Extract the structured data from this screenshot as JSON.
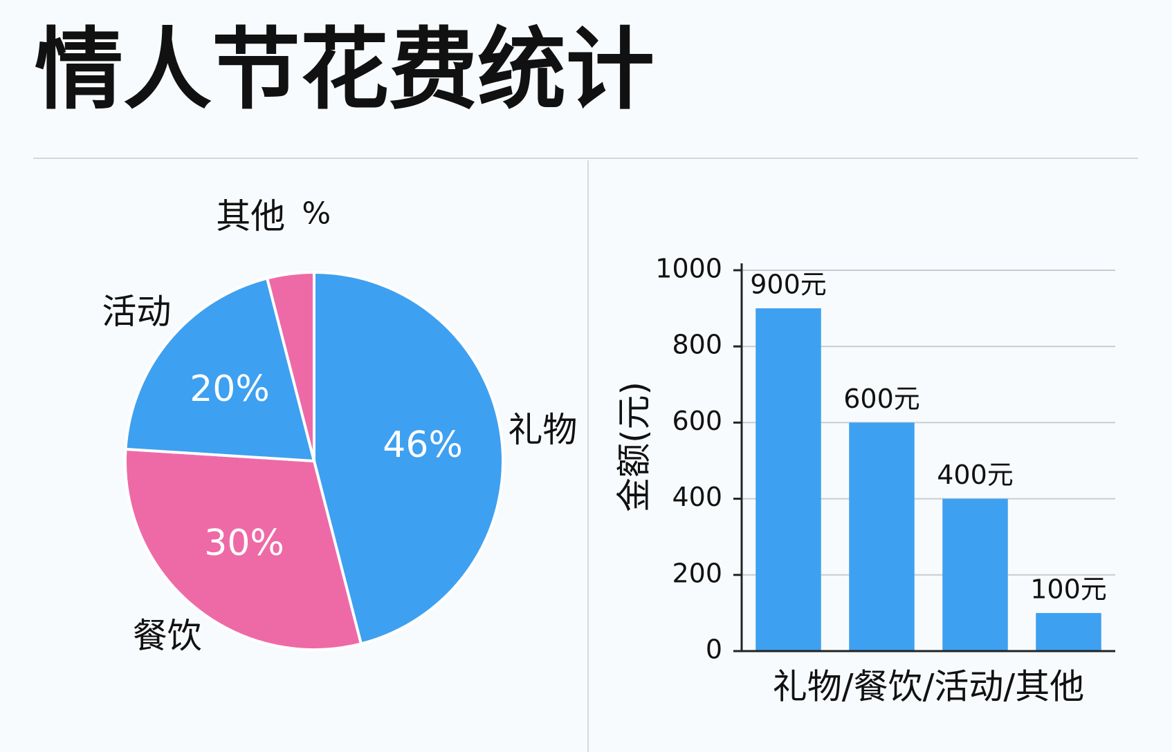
{
  "title": "情人节花费统计",
  "chart_data": [
    {
      "type": "pie",
      "categories": [
        "礼物",
        "餐饮",
        "活动",
        "其他"
      ],
      "values": [
        46,
        30,
        20,
        4
      ],
      "value_labels": [
        "46%",
        "30%",
        "20%",
        "%"
      ],
      "colors": [
        "#3ea0f0",
        "#ee6aa6",
        "#3ea0f0",
        "#ee6aa6"
      ]
    },
    {
      "type": "bar",
      "values": [
        900,
        600,
        400,
        100
      ],
      "value_labels": [
        "900元",
        "600元",
        "400元",
        "100元"
      ],
      "color": "#3ea0f0",
      "xlabel": "礼物/餐饮/活动/其他",
      "ylabel": "金额(元)",
      "ylim": [
        0,
        1000
      ],
      "yticks": [
        0,
        200,
        400,
        600,
        800,
        1000
      ],
      "grid": true
    }
  ]
}
